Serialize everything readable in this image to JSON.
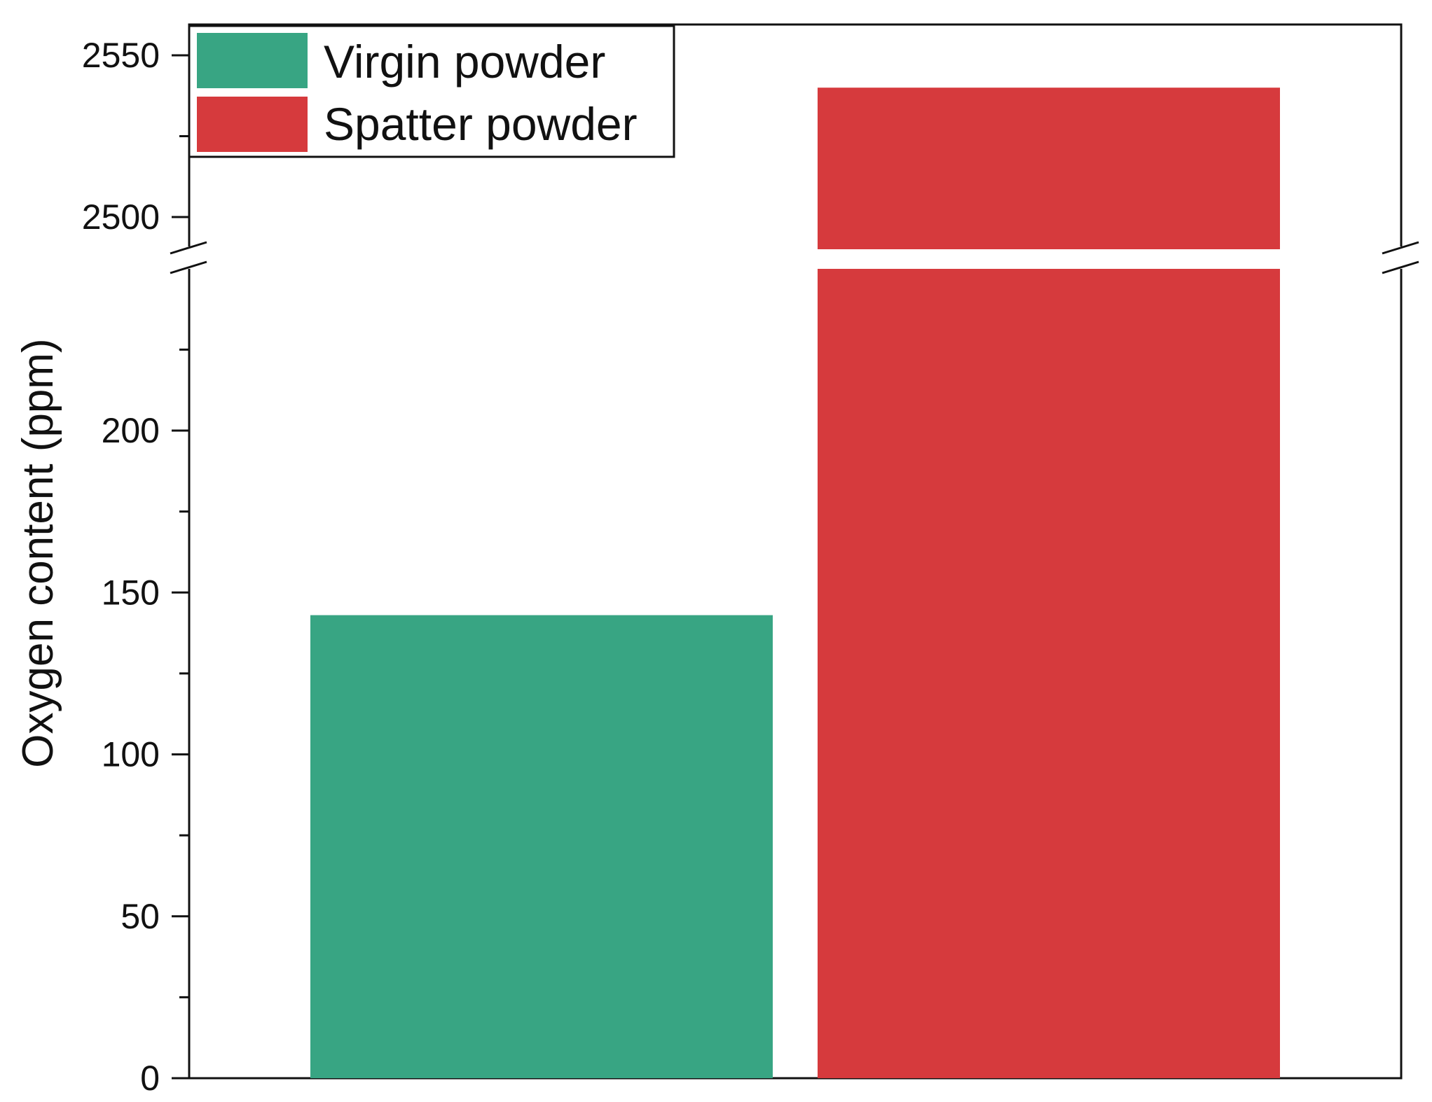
{
  "chart_data": {
    "type": "bar",
    "categories": [
      "Virgin powder",
      "Spatter powder"
    ],
    "series": [
      {
        "name": "Virgin powder",
        "values": [
          143,
          null
        ]
      },
      {
        "name": "Spatter powder",
        "values": [
          null,
          2540
        ]
      }
    ],
    "ylabel": "Oxygen content (ppm)",
    "xlabel": "",
    "axis_break": {
      "lower_range": [
        0,
        250
      ],
      "upper_range": [
        2490,
        2560
      ]
    },
    "yticks_lower": [
      "0",
      "50",
      "100",
      "150",
      "200"
    ],
    "yticks_upper": [
      "2500",
      "2550"
    ],
    "colors": {
      "Virgin powder": "#38a583",
      "Spatter powder": "#d63a3d"
    },
    "legend": {
      "placement": "top-left",
      "entries": [
        "Virgin powder",
        "Spatter powder"
      ]
    },
    "grid": false
  }
}
